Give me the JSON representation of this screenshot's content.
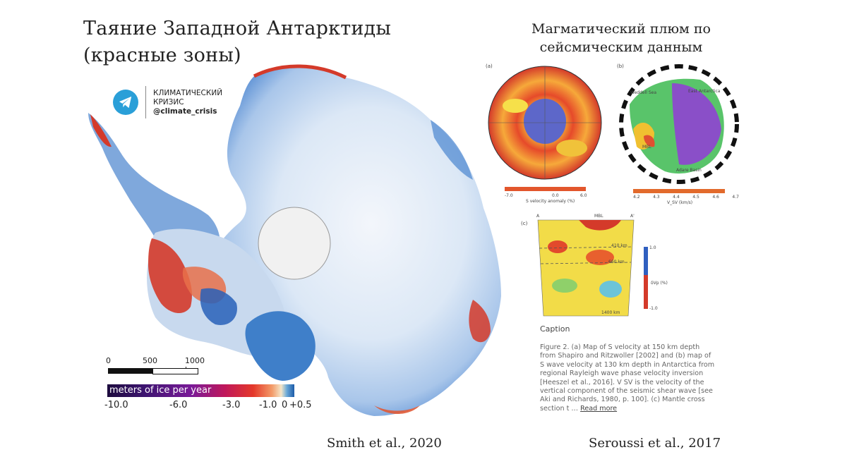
{
  "title": {
    "line1": "Таяние Западной Антарктиды",
    "line2": "(красные зоны)"
  },
  "right_title": {
    "line1": "Магматический плюм по",
    "line2": "сейсмическим данным"
  },
  "brand": {
    "icon": "telegram-icon",
    "line1": "КЛИМАТИЧЕСКИЙ",
    "line2": "КРИЗИС",
    "handle": "@climate_crisis"
  },
  "scale_bar": {
    "labels": [
      "0",
      "500",
      "1000 km"
    ]
  },
  "legend": {
    "title": "meters of ice per year",
    "ticks": [
      "-10.0",
      "-6.0",
      "-3.0",
      "-1.0",
      "0",
      "+0.5"
    ]
  },
  "panels": {
    "a_label": "(a)",
    "b_label": "(b)",
    "c_label": "(c)",
    "a_colorbar_label": "S velocity anomaly (%)",
    "a_colorbar_ticks": [
      "-7.0",
      "0.0",
      "6.0"
    ],
    "b_map_labels": [
      "Weddell Sea",
      "East Antarctica",
      "MBL",
      "Adare Basin"
    ],
    "b_colorbar_label": "V_SV (km/s)",
    "b_colorbar_ticks": [
      "4.2",
      "4.3",
      "4.4",
      "4.5",
      "4.6",
      "4.7"
    ],
    "c_endpoints": [
      "A",
      "MBL",
      "A'"
    ],
    "c_depths": [
      "410 km",
      "660 km",
      "1400 km"
    ],
    "c_colorbar_label": "δVp (%)",
    "c_colorbar_ticks": [
      "1.0",
      "-1.0"
    ]
  },
  "caption": {
    "heading": "Caption",
    "body": "Figure 2. (a) Map of S velocity at 150 km depth from Shapiro and Ritzwoller [2002] and (b) map of S wave velocity at 130 km depth in Antarctica from regional Rayleigh wave phase velocity inversion [Heeszel et al., 2016]. V SV is the velocity of the vertical component of the seismic shear wave [see Aki and Richards, 1980, p. 100]. (c) Mantle cross section t …",
    "read_more": "Read more"
  },
  "citations": {
    "left": "Smith et al., 2020",
    "right": "Seroussi et al., 2017"
  },
  "colors": {
    "melt_red": "#d43a2a",
    "ice_blue": "#2f6fc0",
    "telegram_blue": "#2a9fd8"
  }
}
